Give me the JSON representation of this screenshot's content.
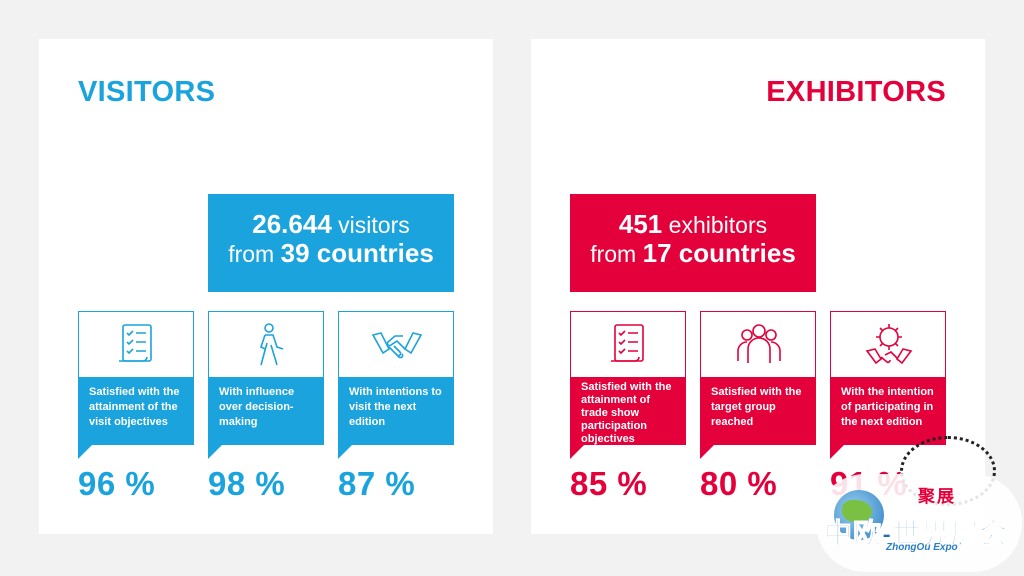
{
  "colors": {
    "visitors_accent": "#1aa3dc",
    "exhibitors_accent": "#e4003a",
    "background": "#f2f2f2"
  },
  "visitors": {
    "heading": "VISITORS",
    "hero": {
      "count": "26.644",
      "count_unit": "visitors",
      "prefix": "from",
      "countries": "39 countries"
    },
    "cards": [
      {
        "icon": "checklist-icon",
        "label": "Satisfied with the attainment of the visit objectives",
        "value": "96 %"
      },
      {
        "icon": "walking-person-icon",
        "label": "With influence over decision-making",
        "value": "98 %"
      },
      {
        "icon": "handshake-icon",
        "label": "With intentions to visit the next edition",
        "value": "87 %"
      }
    ]
  },
  "exhibitors": {
    "heading": "EXHIBITORS",
    "hero": {
      "count": "451",
      "count_unit": "exhibitors",
      "prefix": "from",
      "countries": "17 countries"
    },
    "cards": [
      {
        "icon": "checklist-icon",
        "label": "Satisfied with the attainment of trade show participation objectives",
        "value": "85 %"
      },
      {
        "icon": "group-of-people-icon",
        "label": "Satisfied with the target group reached",
        "value": "80 %"
      },
      {
        "icon": "gear-handshake-icon",
        "label": "With the intention of participating in the next edition",
        "value": "91 %"
      }
    ]
  },
  "watermark": {
    "small_text": "聚展",
    "main_text": "中欧-世界展会",
    "sub_text": "ZhongOu Expo"
  }
}
